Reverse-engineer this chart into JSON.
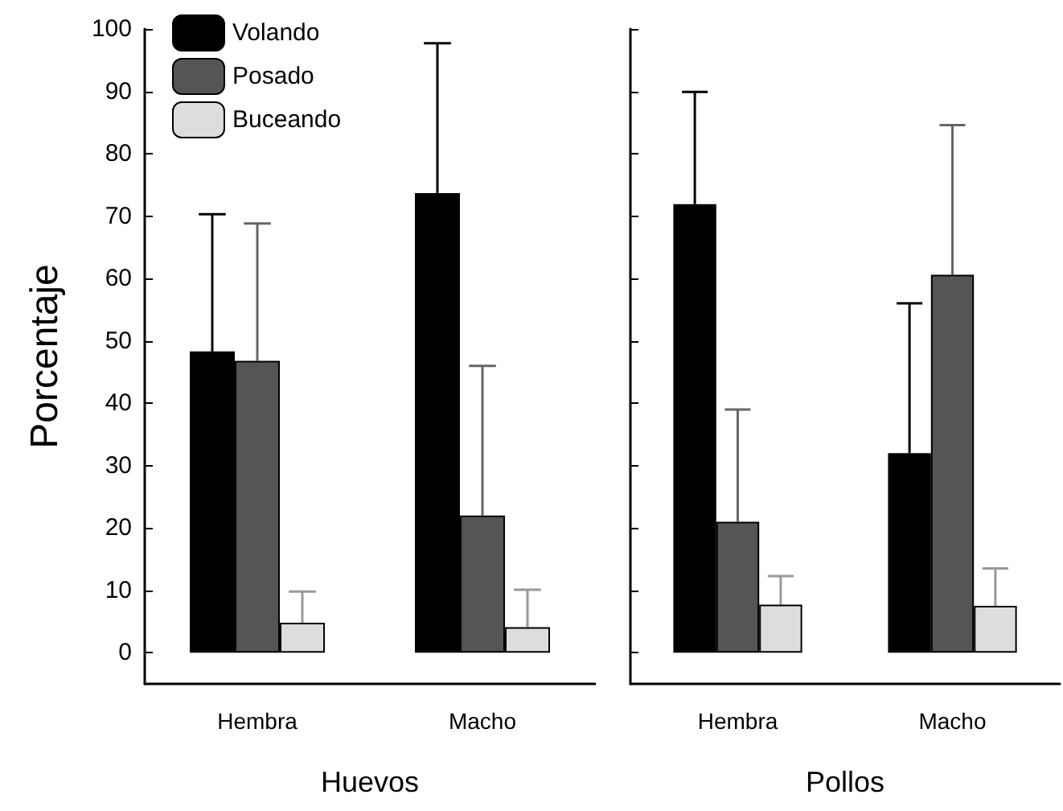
{
  "chart_data": [
    {
      "type": "bar",
      "xlabel": "Huevos",
      "ylabel": "Porcentaje",
      "categories": [
        "Hembra",
        "Macho"
      ],
      "ylim": [
        -5,
        100
      ],
      "yticks": [
        0,
        10,
        20,
        30,
        40,
        50,
        60,
        70,
        80,
        90,
        100
      ],
      "grid": false,
      "legend": "top left",
      "series": [
        {
          "name": "Volando",
          "color": "#000000",
          "values": [
            48.3,
            73.7
          ],
          "errors": [
            22,
            24
          ]
        },
        {
          "name": "Posado",
          "color": "#555555",
          "values": [
            46.8,
            22
          ],
          "errors": [
            22,
            24
          ]
        },
        {
          "name": "Buceando",
          "color": "#dddddd",
          "values": [
            4.8,
            4.1
          ],
          "errors": [
            5,
            6
          ]
        }
      ]
    },
    {
      "type": "bar",
      "xlabel": "Pollos",
      "categories": [
        "Hembra",
        "Macho"
      ],
      "ylim": [
        -5,
        100
      ],
      "yticks": [
        0,
        10,
        20,
        30,
        40,
        50,
        60,
        70,
        80,
        90,
        100
      ],
      "grid": false,
      "tick_labels": "x",
      "legend": false,
      "series": [
        {
          "color": "#000000",
          "values": [
            71.9,
            32
          ],
          "errors": [
            18,
            24
          ]
        },
        {
          "color": "#555555",
          "values": [
            21,
            60.6
          ],
          "errors": [
            18,
            24
          ]
        },
        {
          "color": "#dddddd",
          "values": [
            7.7,
            7.5
          ],
          "errors": [
            4.6,
            6
          ]
        }
      ]
    }
  ]
}
